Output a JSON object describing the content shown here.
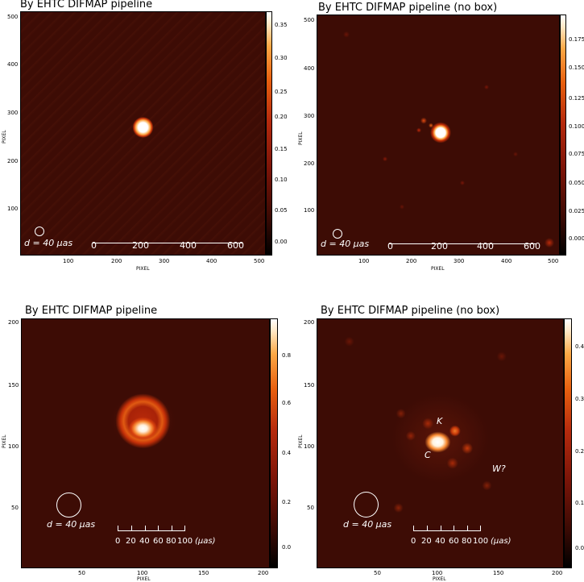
{
  "panels": [
    {
      "title": "By EHTC DIFMAP pipeline",
      "colorbar_ticks": [
        "0.35",
        "0.30",
        "0.25",
        "0.20",
        "0.15",
        "0.10",
        "0.05",
        "0.00"
      ],
      "x_ticks": [
        "100",
        "200",
        "300",
        "400",
        "500"
      ],
      "y_ticks": [
        "500",
        "400",
        "300",
        "200",
        "100"
      ],
      "x_label": "PIXEL",
      "y_label": "PIXEL",
      "beam_label": "d = 40 μas",
      "scale_labels": [
        "0",
        "200",
        "400",
        "600"
      ],
      "scale_unit": ""
    },
    {
      "title": "By EHTC DIFMAP pipeline (no box)",
      "colorbar_ticks": [
        "0.175",
        "0.150",
        "0.125",
        "0.100",
        "0.075",
        "0.050",
        "0.025",
        "0.000"
      ],
      "x_ticks": [
        "100",
        "200",
        "300",
        "400",
        "500"
      ],
      "y_ticks": [
        "500",
        "400",
        "300",
        "200",
        "100"
      ],
      "x_label": "PIXEL",
      "y_label": "PIXEL",
      "beam_label": "d = 40 μas",
      "scale_labels": [
        "0",
        "200",
        "400",
        "600"
      ],
      "scale_unit": ""
    },
    {
      "title": "By EHTC DIFMAP pipeline",
      "colorbar_ticks": [
        "0.8",
        "0.6",
        "0.4",
        "0.2",
        "0.0"
      ],
      "x_ticks": [
        "50",
        "100",
        "150",
        "200"
      ],
      "y_ticks": [
        "200",
        "150",
        "100",
        "50"
      ],
      "x_label": "PIXEL",
      "y_label": "PIXEL",
      "beam_label": "d = 40 μas",
      "scale_labels": [
        "0",
        "20",
        "40",
        "60",
        "80",
        "100"
      ],
      "scale_unit": "(μas)"
    },
    {
      "title": "By EHTC DIFMAP pipeline (no box)",
      "colorbar_ticks": [
        "0.4",
        "0.3",
        "0.2",
        "0.1",
        "0.0"
      ],
      "x_ticks": [
        "50",
        "100",
        "150",
        "200"
      ],
      "y_ticks": [
        "200",
        "150",
        "100",
        "50"
      ],
      "x_label": "PIXEL",
      "y_label": "PIXEL",
      "beam_label": "d = 40 μas",
      "scale_labels": [
        "0",
        "20",
        "40",
        "60",
        "80",
        "100"
      ],
      "scale_unit": "(μas)",
      "annotations": [
        "K",
        "C",
        "W?"
      ]
    }
  ]
}
